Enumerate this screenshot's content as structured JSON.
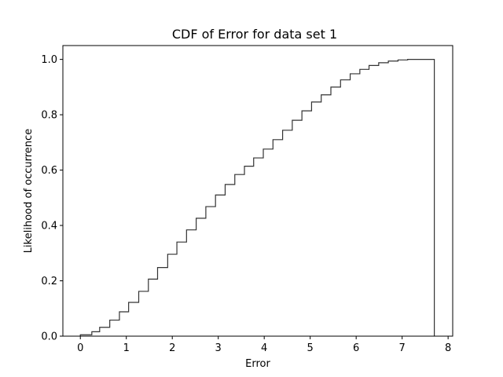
{
  "chart_data": {
    "type": "line",
    "title": "CDF of Error for data set 1",
    "xlabel": "Error",
    "ylabel": "Likelihood of occurrence",
    "xlim": [
      -0.38,
      8.1
    ],
    "ylim": [
      0.0,
      1.05
    ],
    "xticks": [
      0,
      1,
      2,
      3,
      4,
      5,
      6,
      7,
      8
    ],
    "yticks": [
      0.0,
      0.2,
      0.4,
      0.6,
      0.8,
      1.0
    ],
    "xtick_labels": [
      "0",
      "1",
      "2",
      "3",
      "4",
      "5",
      "6",
      "7",
      "8"
    ],
    "ytick_labels": [
      "0.0",
      "0.2",
      "0.4",
      "0.6",
      "0.8",
      "1.0"
    ],
    "grid": false,
    "series": [
      {
        "style": "step",
        "color": "#333333",
        "x": [
          0.0,
          0.25,
          0.42,
          0.64,
          0.85,
          1.05,
          1.27,
          1.48,
          1.68,
          1.9,
          2.1,
          2.31,
          2.52,
          2.73,
          2.94,
          3.15,
          3.36,
          3.57,
          3.77,
          3.98,
          4.19,
          4.4,
          4.61,
          4.82,
          5.03,
          5.24,
          5.45,
          5.66,
          5.87,
          6.08,
          6.28,
          6.49,
          6.7,
          6.91,
          7.12,
          7.7
        ],
        "y": [
          0.005,
          0.016,
          0.032,
          0.058,
          0.088,
          0.122,
          0.162,
          0.206,
          0.248,
          0.296,
          0.34,
          0.384,
          0.426,
          0.468,
          0.51,
          0.548,
          0.584,
          0.614,
          0.644,
          0.676,
          0.71,
          0.744,
          0.78,
          0.814,
          0.846,
          0.872,
          0.9,
          0.926,
          0.948,
          0.964,
          0.978,
          0.988,
          0.994,
          0.998,
          1.0,
          1.0
        ]
      }
    ]
  }
}
